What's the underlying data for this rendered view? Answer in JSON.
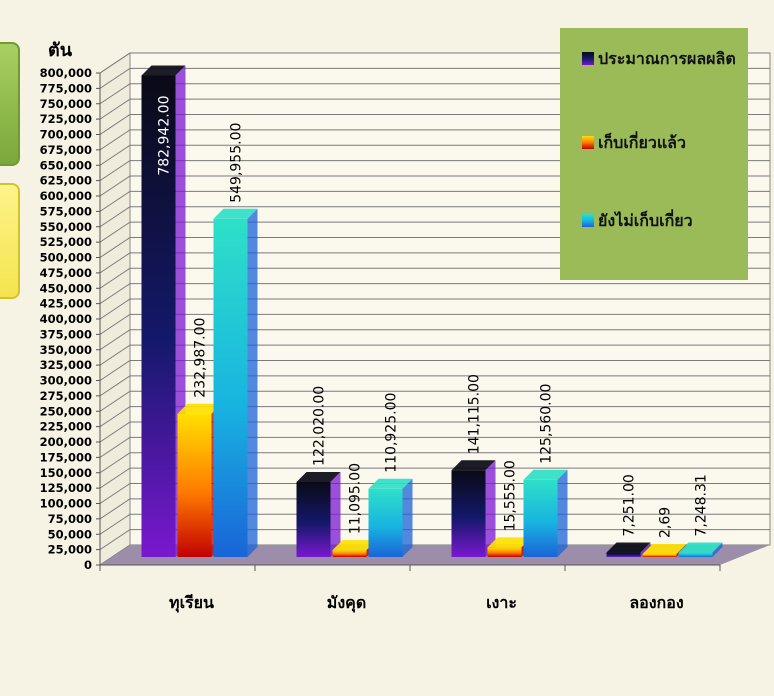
{
  "chart_data": {
    "type": "bar",
    "ylabel": "ตัน",
    "categories": [
      "ทุเรียน",
      "มังคุด",
      "เงาะ",
      "ลองกอง"
    ],
    "ylim": [
      0,
      800000
    ],
    "ytick_step": 25000,
    "grid": true,
    "legend_position": "top-right",
    "series": [
      {
        "name": "ประมาณการผลผลิต",
        "values": [
          782942,
          122020,
          141115,
          7251
        ],
        "labels": [
          "782,942.00",
          "122,020.00",
          "141,115.00",
          "7,251.00"
        ],
        "colors": [
          "#0a0a16",
          "#14186a",
          "#7a18d0"
        ]
      },
      {
        "name": "เก็บเกี่ยวแล้ว",
        "values": [
          232987,
          11095,
          15555,
          2.69
        ],
        "labels": [
          "232,987.00",
          "11,095.00",
          "15,555.00",
          "2,69"
        ],
        "colors": [
          "#ffe000",
          "#ff7a00",
          "#c20000"
        ]
      },
      {
        "name": "ยังไม่เก็บเกี่ยว",
        "values": [
          549955,
          110925,
          125560,
          7248.31
        ],
        "labels": [
          "549,955.00",
          "110,925.00",
          "125,560.00",
          "7,248.31"
        ],
        "colors": [
          "#2ee0c8",
          "#18b4e0",
          "#1a64d8"
        ]
      }
    ]
  }
}
